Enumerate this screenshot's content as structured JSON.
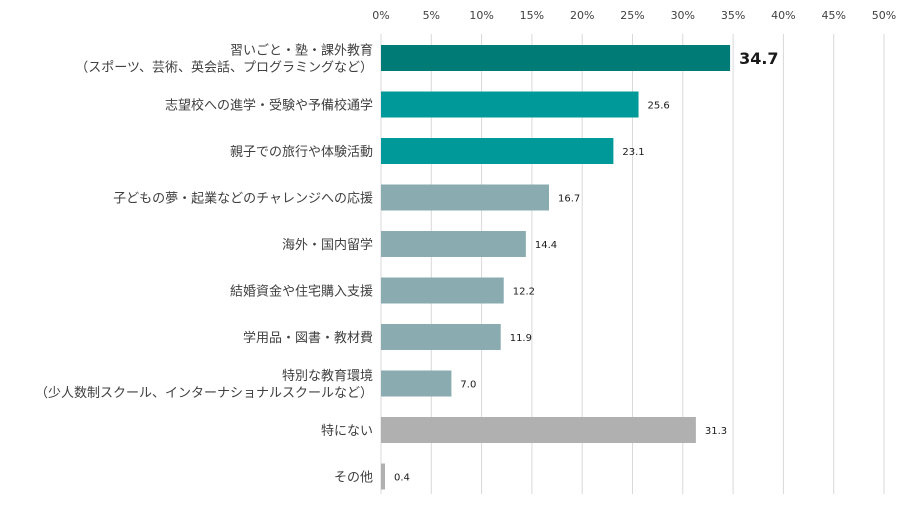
{
  "chart_data": {
    "type": "bar",
    "orientation": "horizontal",
    "title": "",
    "xlabel": "",
    "ylabel": "",
    "xlim": [
      0,
      50
    ],
    "x_ticks": [
      "0%",
      "5%",
      "10%",
      "15%",
      "20%",
      "25%",
      "30%",
      "35%",
      "40%",
      "45%",
      "50%"
    ],
    "axis_position": "top",
    "grid": true,
    "legend": "none",
    "categories": [
      [
        "習いごと・塾・課外教育",
        "（スポーツ、芸術、英会話、プログラミングなど）"
      ],
      [
        "志望校への進学・受験や予備校通学"
      ],
      [
        "親子での旅行や体験活動"
      ],
      [
        "子どもの夢・起業などのチャレンジへの応援"
      ],
      [
        "海外・国内留学"
      ],
      [
        "結婚資金や住宅購入支援"
      ],
      [
        "学用品・図書・教材費"
      ],
      [
        "特別な教育環境",
        "（少人数制スクール、インターナショナルスクールなど）"
      ],
      [
        "特にない"
      ],
      [
        "その他"
      ]
    ],
    "values": [
      34.7,
      25.6,
      23.1,
      16.7,
      14.4,
      12.2,
      11.9,
      7.0,
      31.3,
      0.4
    ],
    "value_labels": [
      "34.7",
      "25.6",
      "23.1",
      "16.7",
      "14.4",
      "12.2",
      "11.9",
      "7.0",
      "31.3",
      "0.4"
    ],
    "highlight_index": 0,
    "bar_colors": [
      "#007b76",
      "#00999a",
      "#00999a",
      "#8aabb0",
      "#8aabb0",
      "#8aabb0",
      "#8aabb0",
      "#8aabb0",
      "#b0b0b0",
      "#b0b0b0"
    ]
  }
}
